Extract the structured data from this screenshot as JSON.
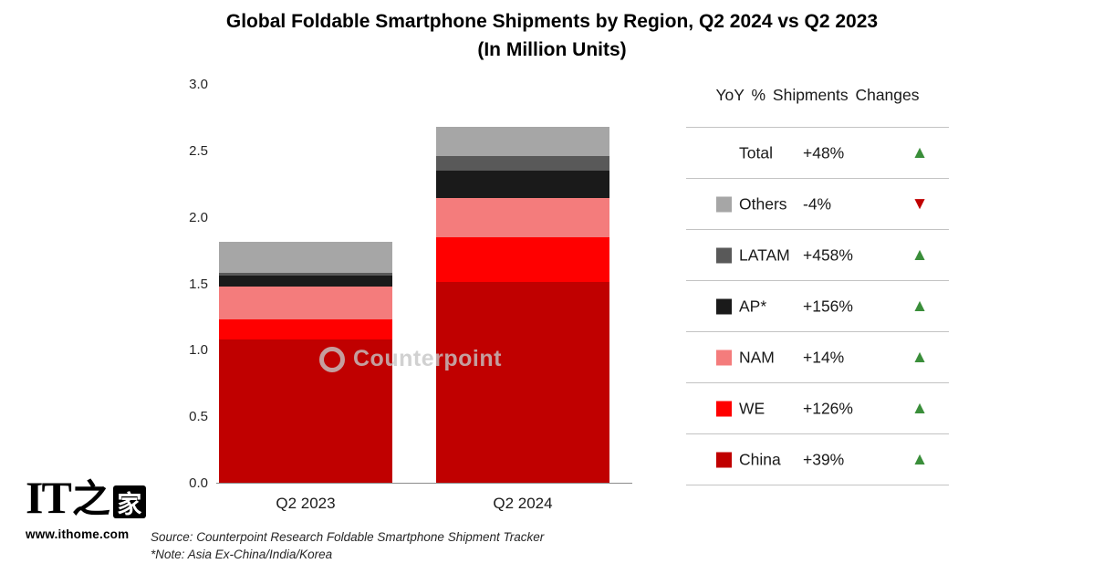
{
  "title": {
    "line1": "Global Foldable Smartphone Shipments by Region, Q2 2024 vs Q2 2023",
    "line2": "(In Million Units)"
  },
  "chart_data": {
    "type": "bar",
    "stacked": true,
    "title": "Global Foldable Smartphone Shipments by Region, Q2 2024 vs Q2 2023 (In Million Units)",
    "categories": [
      "Q2 2023",
      "Q2 2024"
    ],
    "series": [
      {
        "name": "China",
        "color": "#c00000",
        "values": [
          1.08,
          1.51
        ]
      },
      {
        "name": "WE",
        "color": "#ff0000",
        "values": [
          0.15,
          0.34
        ]
      },
      {
        "name": "NAM",
        "color": "#f47c7c",
        "values": [
          0.25,
          0.29
        ]
      },
      {
        "name": "AP*",
        "color": "#1a1a1a",
        "values": [
          0.08,
          0.21
        ]
      },
      {
        "name": "LATAM",
        "color": "#595959",
        "values": [
          0.02,
          0.11
        ]
      },
      {
        "name": "Others",
        "color": "#a6a6a6",
        "values": [
          0.23,
          0.22
        ]
      }
    ],
    "totals": [
      1.81,
      2.68
    ],
    "ylim": [
      0,
      3.0
    ],
    "yticks": [
      "3.0",
      "2.5",
      "2.0",
      "1.5",
      "1.0",
      "0.5",
      "0.0"
    ],
    "grid": false,
    "legend_position": "right-table"
  },
  "legend_panel": {
    "header": "YoY % Shipments Changes",
    "rows": [
      {
        "label": "Total",
        "change": "+48%",
        "direction": "up",
        "swatch": null
      },
      {
        "label": "Others",
        "change": "-4%",
        "direction": "down",
        "swatch": "#a6a6a6"
      },
      {
        "label": "LATAM",
        "change": "+458%",
        "direction": "up",
        "swatch": "#595959"
      },
      {
        "label": "AP*",
        "change": "+156%",
        "direction": "up",
        "swatch": "#1a1a1a"
      },
      {
        "label": "NAM",
        "change": "+14%",
        "direction": "up",
        "swatch": "#f47c7c"
      },
      {
        "label": "WE",
        "change": "+126%",
        "direction": "up",
        "swatch": "#ff0000"
      },
      {
        "label": "China",
        "change": "+39%",
        "direction": "up",
        "swatch": "#c00000"
      }
    ]
  },
  "footnotes": {
    "source": "Source: Counterpoint Research Foldable Smartphone Shipment Tracker",
    "note": "*Note: Asia Ex-China/India/Korea"
  },
  "watermark": {
    "text": "Counterpoint"
  },
  "branding": {
    "logo_it": "IT",
    "logo_zhi": "之",
    "logo_jia": "家",
    "url": "www.ithome.com"
  },
  "colors": {
    "up_arrow": "#3a8e3a",
    "down_arrow": "#c00000",
    "axis_line": "#8c8c8c"
  },
  "icons": {
    "up": "up-triangle-icon",
    "down": "down-triangle-icon"
  }
}
